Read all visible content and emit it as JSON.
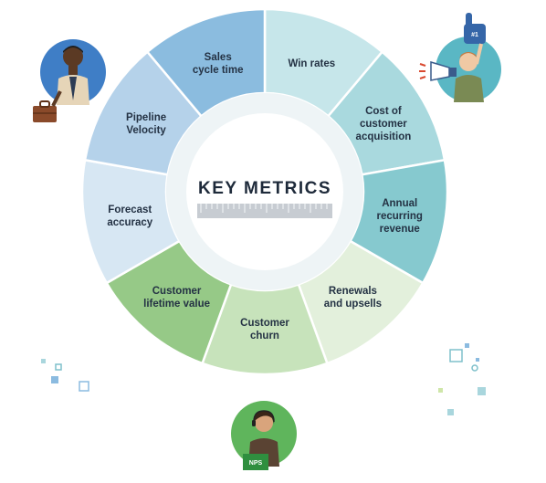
{
  "diagram": {
    "center_title": "KEY METRICS",
    "segments": [
      {
        "label": [
          "Win rates"
        ],
        "color": "#c6e6ea"
      },
      {
        "label": [
          "Cost of",
          "customer",
          "acquisition"
        ],
        "color": "#a9d9de"
      },
      {
        "label": [
          "Annual",
          "recurring",
          "revenue"
        ],
        "color": "#86c9cf"
      },
      {
        "label": [
          "Renewals",
          "and upsells"
        ],
        "color": "#e3f0dc"
      },
      {
        "label": [
          "Customer",
          "churn"
        ],
        "color": "#c7e3bb"
      },
      {
        "label": [
          "Customer",
          "lifetime value"
        ],
        "color": "#96c987"
      },
      {
        "label": [
          "Forecast",
          "accuracy"
        ],
        "color": "#d7e7f3"
      },
      {
        "label": [
          "Pipeline",
          "Velocity"
        ],
        "color": "#b5d2ea"
      },
      {
        "label": [
          "Sales",
          "cycle time"
        ],
        "color": "#8bbcdf"
      }
    ]
  },
  "illustrations": {
    "fan_badge": "#1",
    "agent_badge": "NPS",
    "colors": {
      "circle_blue": "#3f7ec6",
      "circle_teal": "#5ab7c4",
      "circle_green": "#5fb55c",
      "ruler": "#c7ccd2"
    }
  }
}
